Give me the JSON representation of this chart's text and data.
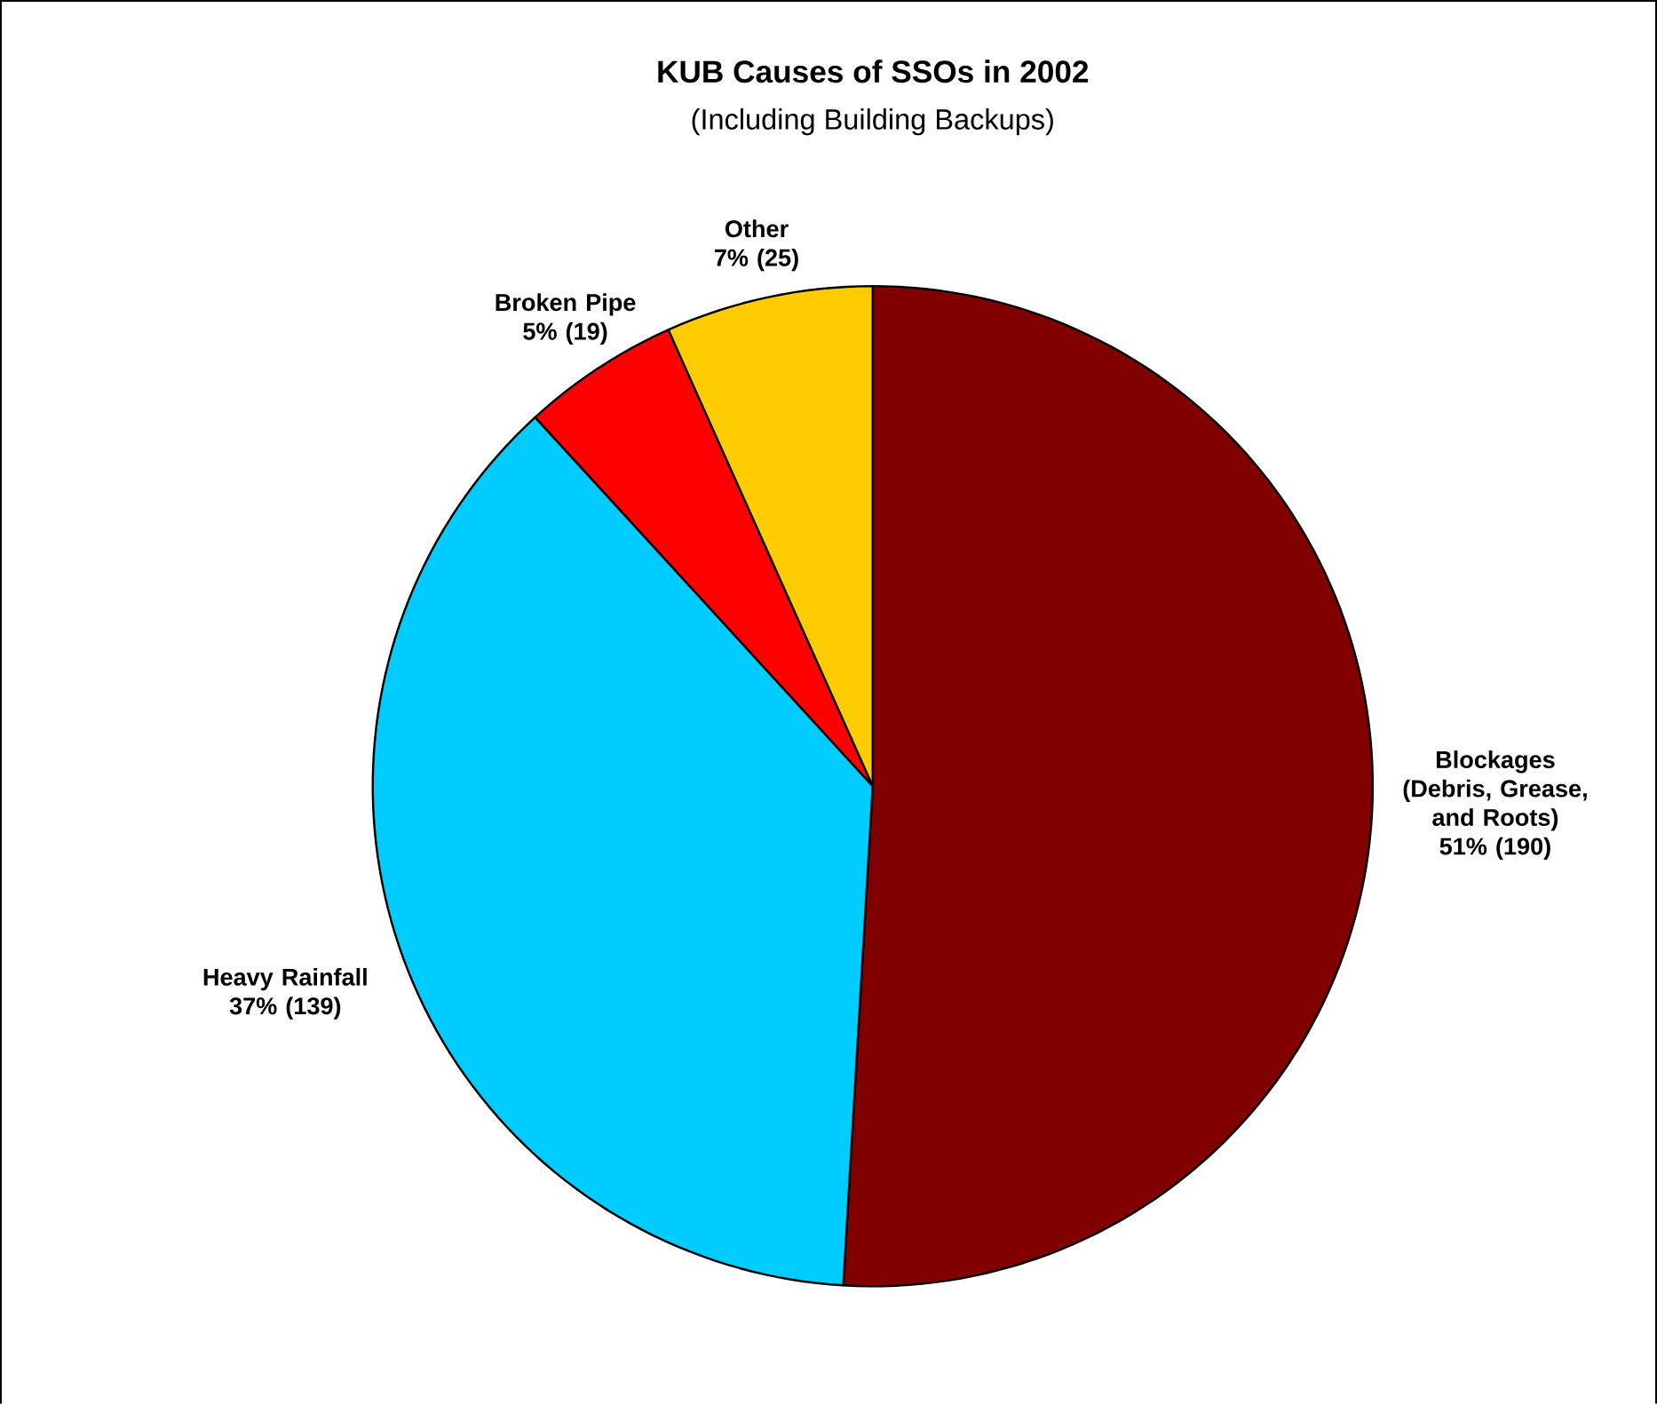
{
  "chart_data": {
    "type": "pie",
    "title": "KUB Causes of SSOs in 2002",
    "subtitle": "(Including Building Backups)",
    "categories": [
      "Blockages (Debris, Grease, and Roots)",
      "Heavy Rainfall",
      "Broken Pipe",
      "Other"
    ],
    "values": [
      190,
      139,
      19,
      25
    ],
    "value_labels": [
      "51% (190)",
      "37% (139)",
      "5% (19)",
      "7% (25)"
    ],
    "colors": [
      "#800000",
      "#00ccff",
      "#ff0000",
      "#ffcc00"
    ]
  }
}
